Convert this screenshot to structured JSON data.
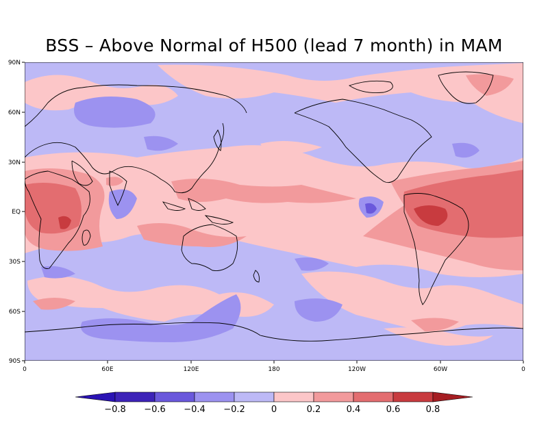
{
  "title": "BSS – Above Normal of H500 (lead 7 month) in MAM",
  "lat_ticks": [
    "90N",
    "60N",
    "30N",
    "EQ",
    "30S",
    "60S",
    "90S"
  ],
  "lon_ticks": [
    "0",
    "60E",
    "120E",
    "180",
    "120W",
    "60W",
    "0"
  ],
  "colorbar": {
    "labels": [
      "−0.8",
      "−0.6",
      "−0.4",
      "−0.2",
      "0",
      "0.2",
      "0.4",
      "0.6",
      "0.8"
    ],
    "colors": [
      "#2a13b4",
      "#3d23b8",
      "#6a58dc",
      "#9c92f0",
      "#bdb9f6",
      "#fcc6c8",
      "#f29a9c",
      "#e36d70",
      "#c83b3f",
      "#a51d22"
    ]
  },
  "palette": {
    "neutral_neg": "#bdb9f6",
    "neg_04": "#9c92f0",
    "neg_06": "#6a58dc",
    "pos_0": "#fcc6c8",
    "pos_02": "#f29a9c",
    "pos_04": "#e36d70",
    "pos_06": "#c83b3f"
  }
}
